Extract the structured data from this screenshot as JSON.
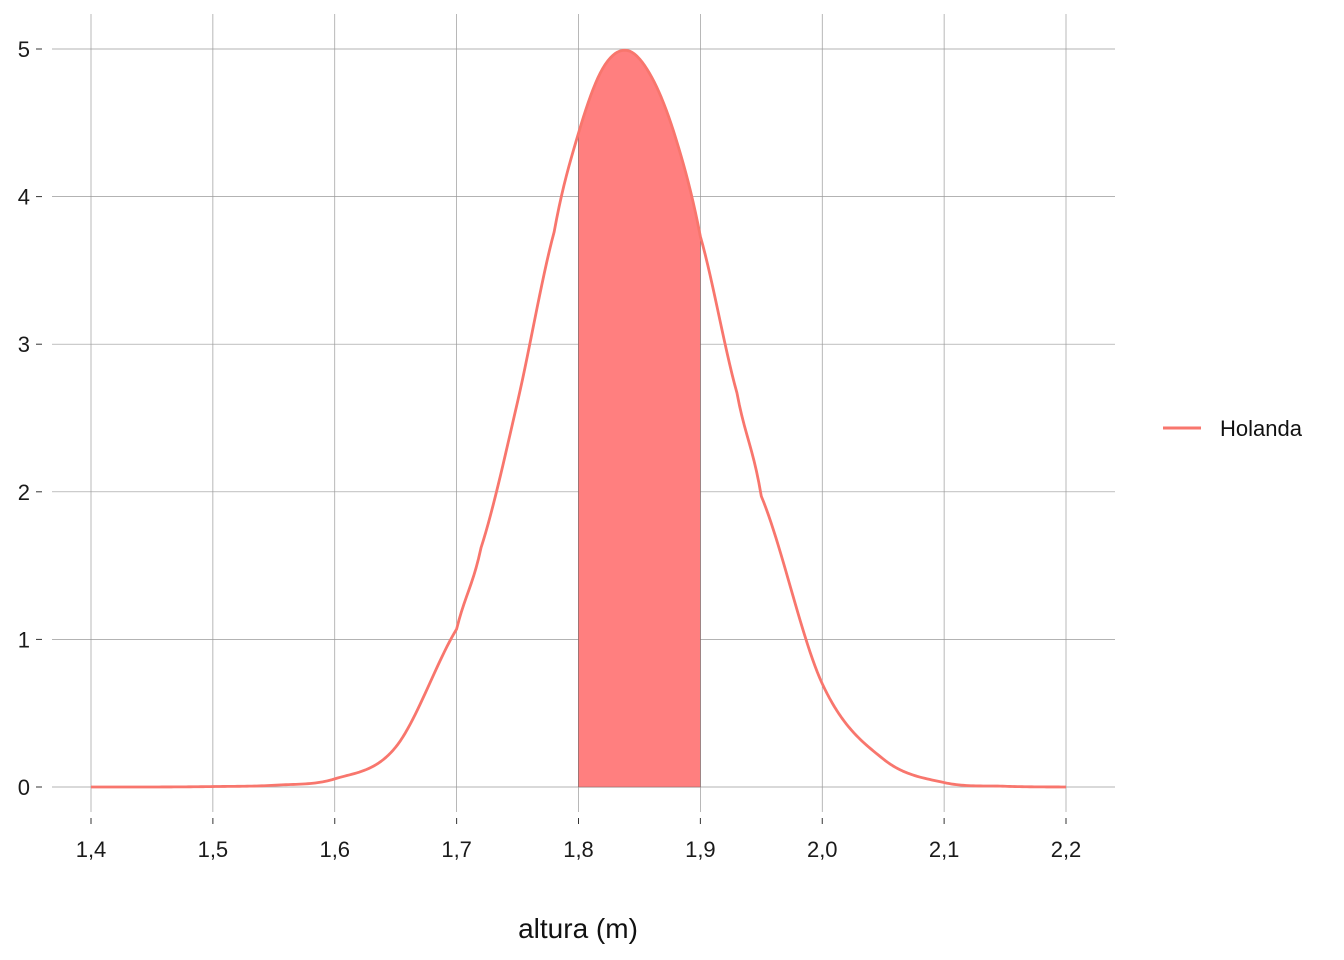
{
  "chart_data": {
    "type": "area",
    "title": "",
    "xlabel": "altura (m)",
    "ylabel": "",
    "xlim": [
      1.4,
      2.2
    ],
    "ylim": [
      0,
      5
    ],
    "x_ticks": [
      1.4,
      1.5,
      1.6,
      1.7,
      1.8,
      1.9,
      2.0,
      2.1,
      2.2
    ],
    "x_tick_labels": [
      "1,4",
      "1,5",
      "1,6",
      "1,7",
      "1,8",
      "1,9",
      "2,0",
      "2,1",
      "2,2"
    ],
    "y_ticks": [
      0,
      1,
      2,
      3,
      4,
      5
    ],
    "y_tick_labels": [
      "0",
      "1",
      "2",
      "3",
      "4",
      "5"
    ],
    "grid": true,
    "legend": {
      "placement": "right",
      "entries": [
        "Holanda"
      ]
    },
    "series": [
      {
        "name": "Holanda",
        "color": "#F8766D",
        "x": [
          1.4,
          1.45,
          1.5,
          1.55,
          1.6,
          1.65,
          1.7,
          1.72,
          1.75,
          1.78,
          1.8,
          1.82,
          1.84,
          1.86,
          1.88,
          1.9,
          1.93,
          1.95,
          2.0,
          2.05,
          2.1,
          2.15,
          2.2
        ],
        "values": [
          0.0,
          0.0,
          0.003,
          0.012,
          0.055,
          0.27,
          1.07,
          1.62,
          2.61,
          3.76,
          4.43,
          4.87,
          4.99,
          4.81,
          4.39,
          3.73,
          2.67,
          1.97,
          0.7,
          0.19,
          0.03,
          0.005,
          0.0
        ]
      }
    ],
    "shaded_region": {
      "x_start": 1.8,
      "x_end": 1.9,
      "color": "#FF7F7F"
    }
  }
}
